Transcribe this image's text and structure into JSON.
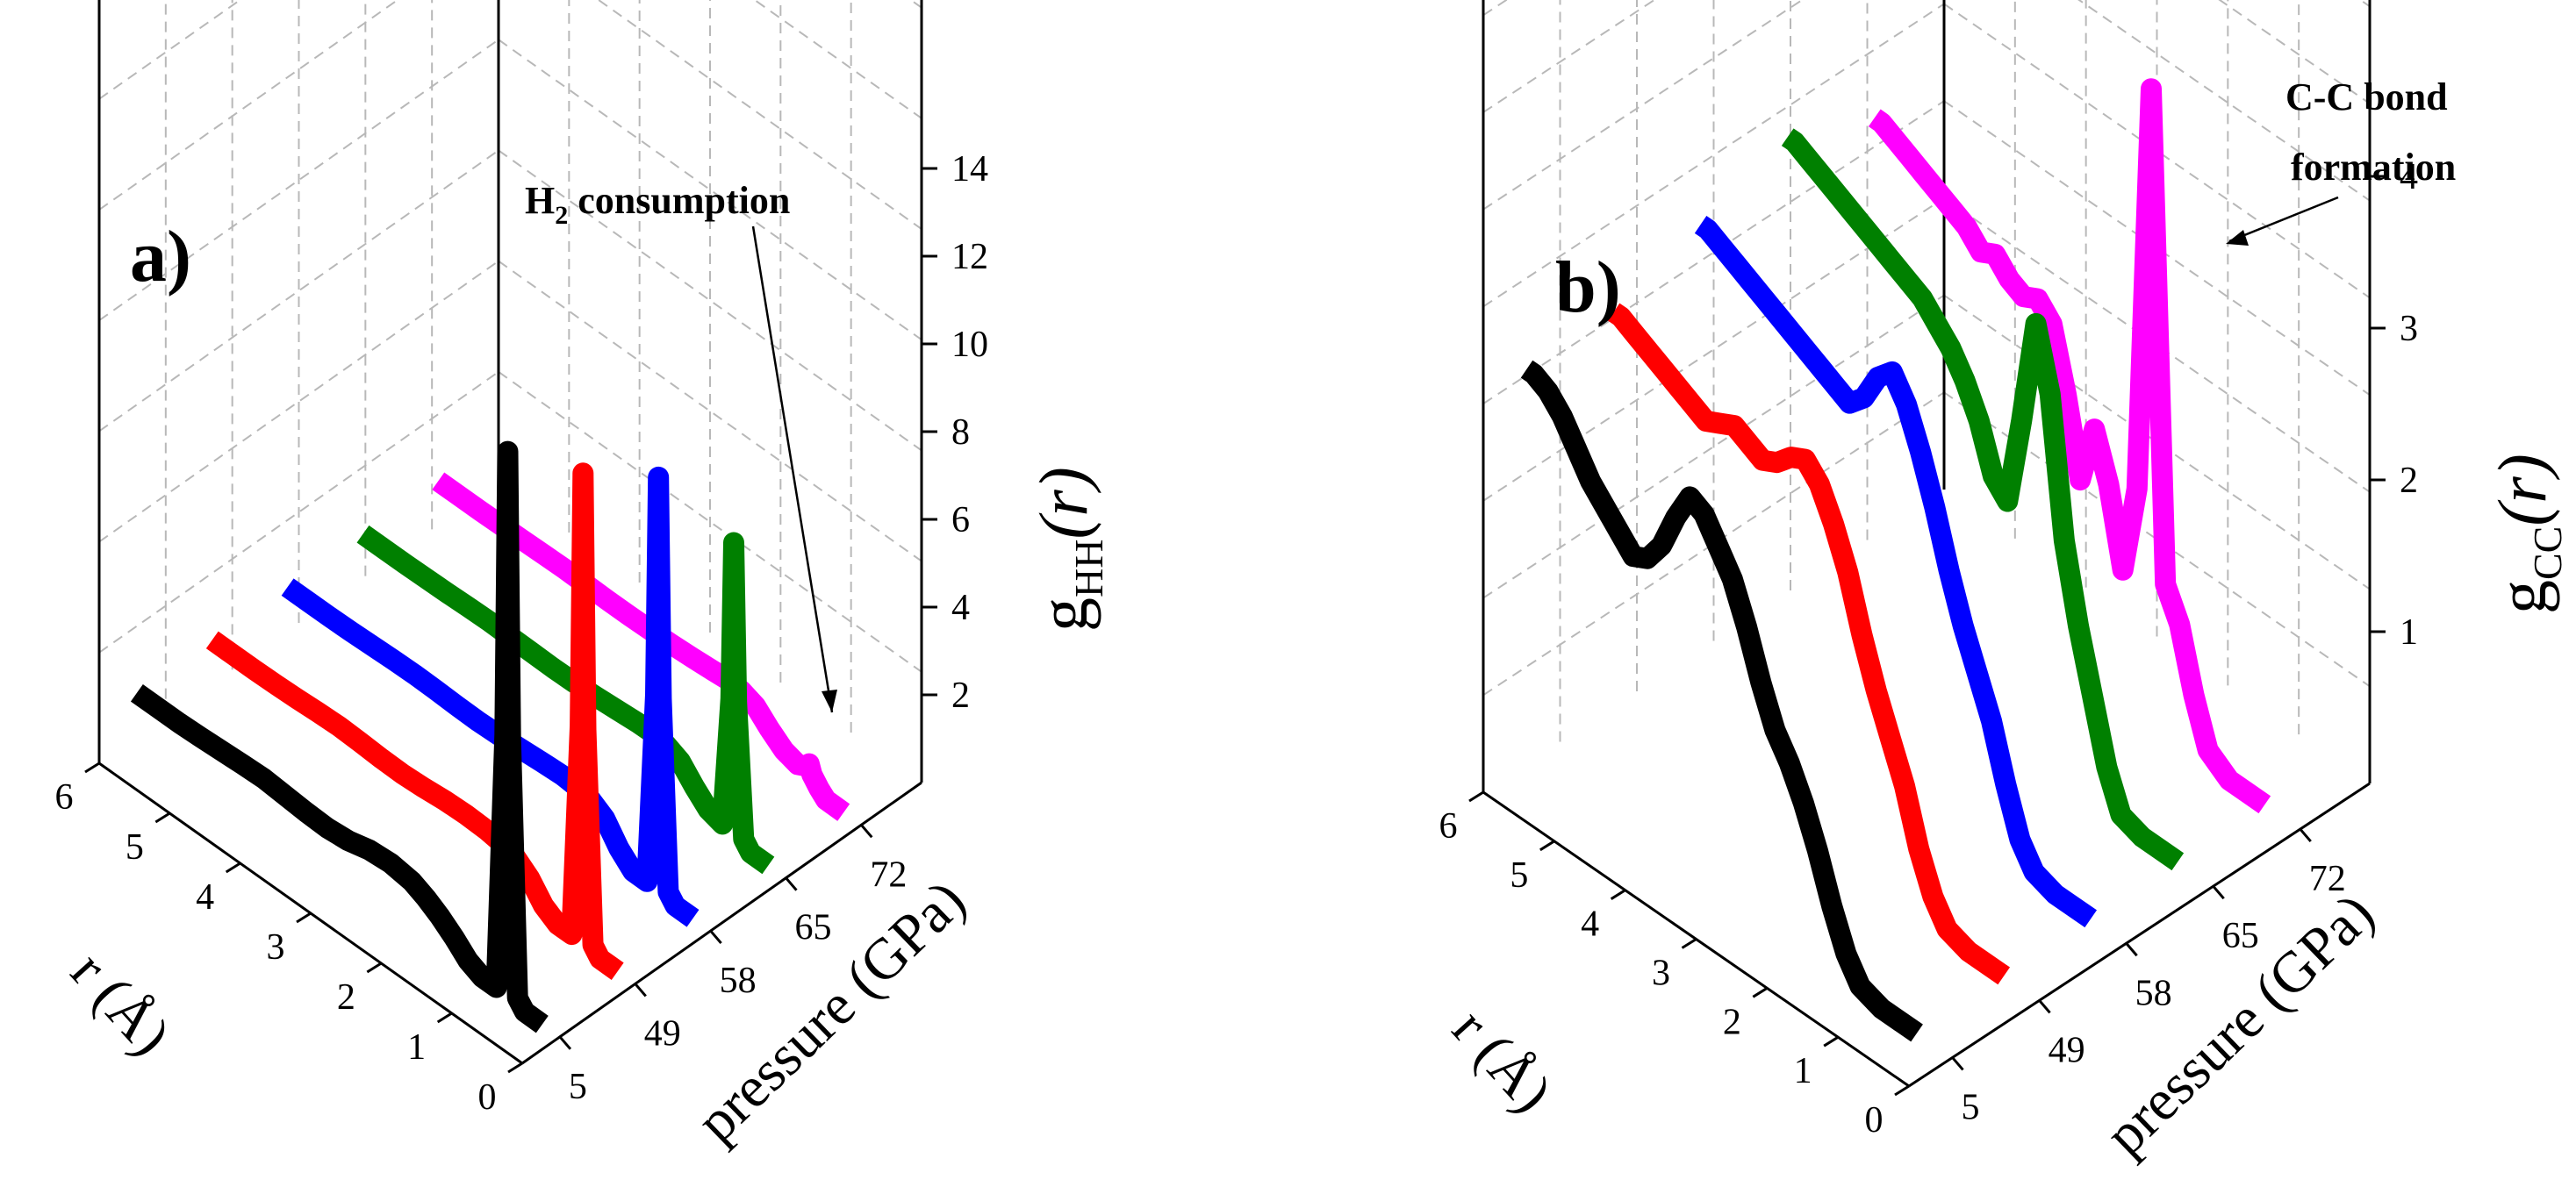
{
  "chart_data": [
    {
      "panel": "a)",
      "type": "line",
      "style": "3d-waterfall",
      "xlabel": "r (Å)",
      "ylabel_main": "g",
      "ylabel_sub": "HH",
      "ylabel_tail": "(r)",
      "zlabel": "pressure (GPa)",
      "r_ticks": [
        "0",
        "1",
        "2",
        "3",
        "4",
        "5",
        "6"
      ],
      "pressure_ticks": [
        "5",
        "49",
        "58",
        "65",
        "72"
      ],
      "g_ticks": [
        "2",
        "4",
        "6",
        "8",
        "10",
        "12",
        "14"
      ],
      "g_range": [
        0,
        15
      ],
      "r_range": [
        0,
        6
      ],
      "annotation": {
        "text_main": "H",
        "text_sub": "2",
        "text_tail": " consumption"
      },
      "r": [
        0.25,
        0.5,
        0.6,
        0.7,
        0.74,
        0.78,
        0.9,
        1.1,
        1.3,
        1.5,
        1.7,
        1.9,
        2.1,
        2.4,
        2.7,
        3.0,
        3.3,
        3.6,
        3.9,
        4.2,
        4.5,
        4.8,
        5.1,
        5.4,
        5.7,
        6.0
      ],
      "series": [
        {
          "name": "5",
          "color": "#000000",
          "values": [
            0.0,
            0.0,
            0.2,
            6.0,
            12.5,
            6.0,
            0.1,
            0.1,
            0.25,
            0.55,
            0.8,
            1.0,
            1.15,
            1.22,
            1.18,
            1.05,
            1.0,
            1.02,
            1.06,
            1.1,
            1.08,
            1.05,
            1.02,
            1.0,
            1.0,
            1.0
          ]
        },
        {
          "name": "49",
          "color": "#ff0000",
          "values": [
            0.0,
            0.0,
            0.2,
            5.0,
            10.8,
            5.0,
            0.1,
            0.1,
            0.3,
            0.7,
            0.95,
            1.05,
            1.1,
            1.12,
            1.1,
            1.05,
            1.02,
            1.03,
            1.06,
            1.08,
            1.06,
            1.03,
            1.01,
            1.0,
            1.0,
            1.0
          ]
        },
        {
          "name": "58",
          "color": "#0000ff",
          "values": [
            0.0,
            0.0,
            0.2,
            4.5,
            9.5,
            4.5,
            0.1,
            0.1,
            0.4,
            0.85,
            1.05,
            1.12,
            1.15,
            1.12,
            1.08,
            1.04,
            1.02,
            1.03,
            1.05,
            1.06,
            1.05,
            1.03,
            1.01,
            1.0,
            1.0,
            1.0
          ]
        },
        {
          "name": "65",
          "color": "#008000",
          "values": [
            0.0,
            0.0,
            0.2,
            3.2,
            6.8,
            3.2,
            0.2,
            0.3,
            0.6,
            0.95,
            1.1,
            1.15,
            1.14,
            1.1,
            1.06,
            1.03,
            1.02,
            1.03,
            1.04,
            1.05,
            1.04,
            1.02,
            1.01,
            1.0,
            1.0,
            1.0
          ]
        },
        {
          "name": "72",
          "color": "#ff00ff",
          "values": [
            0.0,
            0.0,
            0.15,
            0.35,
            0.55,
            0.45,
            0.35,
            0.45,
            0.7,
            1.0,
            1.12,
            1.15,
            1.12,
            1.08,
            1.05,
            1.03,
            1.02,
            1.02,
            1.03,
            1.04,
            1.03,
            1.02,
            1.01,
            1.0,
            1.0,
            1.0
          ]
        }
      ]
    },
    {
      "panel": "b)",
      "type": "line",
      "style": "3d-waterfall",
      "xlabel": "r (Å)",
      "ylabel_main": "g",
      "ylabel_sub": "CC",
      "ylabel_tail": "(r)",
      "zlabel": "pressure (GPa)",
      "r_ticks": [
        "0",
        "1",
        "2",
        "3",
        "4",
        "5",
        "6"
      ],
      "pressure_ticks": [
        "5",
        "49",
        "58",
        "65",
        "72"
      ],
      "g_ticks": [
        "1",
        "2",
        "3",
        "4"
      ],
      "g_range": [
        0,
        4.3
      ],
      "r_range": [
        0,
        6
      ],
      "annotation": {
        "line1": "C-C bond",
        "line2": "formation"
      },
      "r": [
        0.5,
        1.0,
        1.3,
        1.5,
        1.7,
        1.9,
        2.1,
        2.3,
        2.5,
        2.7,
        2.9,
        3.1,
        3.3,
        3.5,
        3.7,
        3.9,
        4.1,
        4.3,
        4.5,
        4.7,
        4.9,
        5.1,
        5.3,
        5.5,
        5.7,
        5.9,
        6.0
      ],
      "series": [
        {
          "name": "5",
          "color": "#000000",
          "values": [
            0.0,
            0.0,
            0.05,
            0.2,
            0.45,
            0.75,
            1.0,
            1.2,
            1.35,
            1.6,
            1.9,
            2.15,
            2.3,
            2.45,
            2.5,
            2.3,
            2.05,
            1.9,
            1.85,
            1.95,
            2.05,
            2.15,
            2.3,
            2.45,
            2.55,
            2.6,
            2.6
          ]
        },
        {
          "name": "49",
          "color": "#ff0000",
          "values": [
            0.0,
            0.0,
            0.05,
            0.2,
            0.45,
            0.8,
            1.05,
            1.3,
            1.6,
            1.95,
            2.2,
            2.4,
            2.5,
            2.45,
            2.35,
            2.3,
            2.35,
            2.4,
            2.35,
            2.3,
            2.35,
            2.4,
            2.45,
            2.5,
            2.55,
            2.6,
            2.6
          ]
        },
        {
          "name": "58",
          "color": "#0000ff",
          "values": [
            0.0,
            0.0,
            0.05,
            0.2,
            0.5,
            0.85,
            1.1,
            1.35,
            1.65,
            2.0,
            2.3,
            2.55,
            2.7,
            2.6,
            2.4,
            2.3,
            2.35,
            2.4,
            2.45,
            2.5,
            2.55,
            2.6,
            2.65,
            2.7,
            2.75,
            2.8,
            2.8
          ]
        },
        {
          "name": "65",
          "color": "#008000",
          "values": [
            0.0,
            0.0,
            0.05,
            0.3,
            0.7,
            1.1,
            1.6,
            2.5,
            2.9,
            2.2,
            1.6,
            1.7,
            2.0,
            2.2,
            2.35,
            2.45,
            2.55,
            2.6,
            2.65,
            2.7,
            2.75,
            2.8,
            2.85,
            2.9,
            2.95,
            3.0,
            3.0
          ]
        },
        {
          "name": "72",
          "color": "#ff00ff",
          "values": [
            0.0,
            0.0,
            0.1,
            0.4,
            0.8,
            1.0,
            4.2,
            1.5,
            0.9,
            1.4,
            1.7,
            1.3,
            1.8,
            2.2,
            2.3,
            2.25,
            2.3,
            2.4,
            2.35,
            2.45,
            2.5,
            2.55,
            2.6,
            2.65,
            2.7,
            2.75,
            2.75
          ]
        }
      ]
    }
  ]
}
